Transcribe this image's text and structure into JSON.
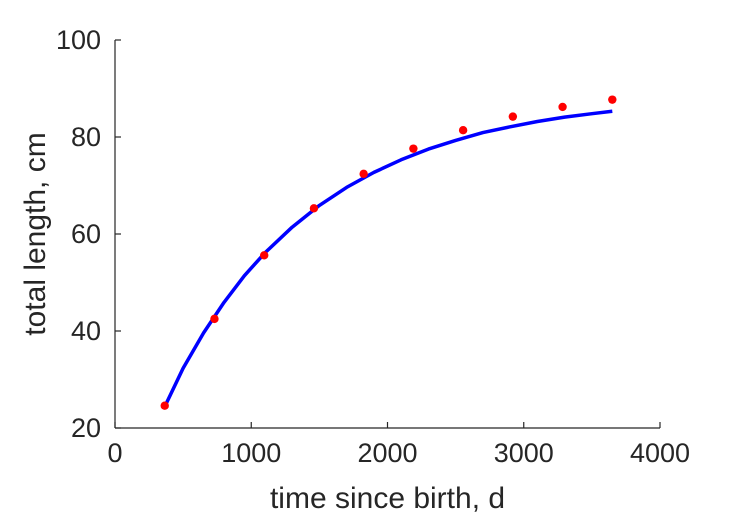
{
  "chart_data": {
    "type": "scatter",
    "title": "",
    "xlabel": "time since birth, d",
    "ylabel": "total length, cm",
    "xlim": [
      0,
      4000
    ],
    "ylim": [
      20,
      100
    ],
    "xticks": [
      0,
      1000,
      2000,
      3000,
      4000
    ],
    "yticks": [
      20,
      40,
      60,
      80,
      100
    ],
    "grid": false,
    "legend": "none",
    "series": [
      {
        "kind": "points",
        "color": "#ff0000",
        "x": [
          365,
          730,
          1095,
          1460,
          1825,
          2190,
          2555,
          2920,
          3285,
          3650
        ],
        "y": [
          24.6,
          42.5,
          55.6,
          65.3,
          72.4,
          77.6,
          81.4,
          84.2,
          86.2,
          87.7
        ]
      },
      {
        "kind": "fit-line",
        "color": "#0000ff",
        "x": [
          365,
          500,
          650,
          800,
          950,
          1100,
          1300,
          1500,
          1700,
          1900,
          2100,
          2300,
          2500,
          2700,
          2900,
          3100,
          3300,
          3500,
          3650
        ],
        "y": [
          24.4,
          32.3,
          39.6,
          45.9,
          51.4,
          56.1,
          61.4,
          65.9,
          69.6,
          72.7,
          75.3,
          77.5,
          79.3,
          80.9,
          82.1,
          83.2,
          84.1,
          84.8,
          85.3
        ]
      }
    ]
  }
}
